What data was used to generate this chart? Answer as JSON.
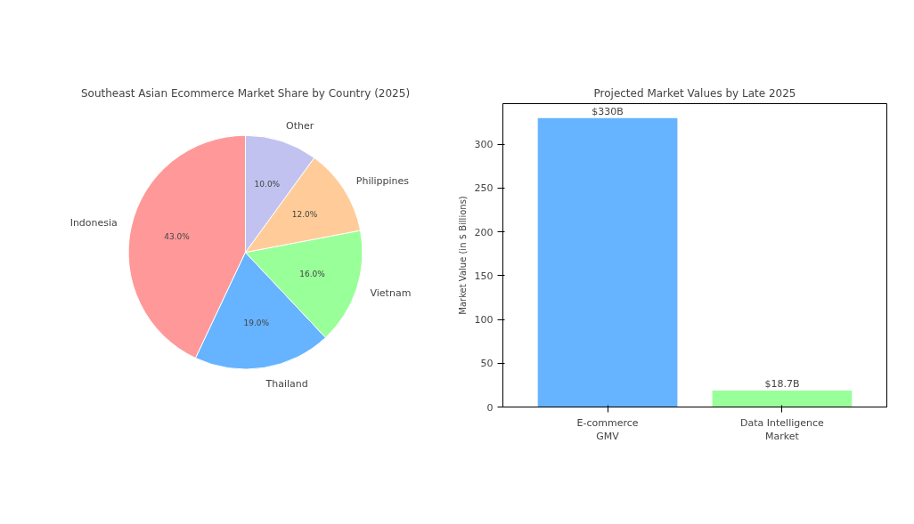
{
  "chart_data": [
    {
      "type": "pie",
      "title": "Southeast Asian Ecommerce Market Share by Country (2025)",
      "categories": [
        "Indonesia",
        "Thailand",
        "Vietnam",
        "Philippines",
        "Other"
      ],
      "values": [
        43,
        19,
        16,
        12,
        10
      ],
      "colors": [
        "#ff9999",
        "#66b3ff",
        "#99ff99",
        "#ffcc99",
        "#c2c2f0"
      ],
      "value_labels": [
        "43.0%",
        "19.0%",
        "16.0%",
        "12.0%",
        "10.0%"
      ]
    },
    {
      "type": "bar",
      "title": "Projected Market Values by Late 2025",
      "ylabel": "Market Value (in $ Billions)",
      "categories": [
        "E-commerce\nGMV",
        "Data Intelligence\nMarket"
      ],
      "values": [
        330,
        18.7
      ],
      "colors": [
        "#66b3ff",
        "#99ff99"
      ],
      "value_labels": [
        "$330B",
        "$18.7B"
      ],
      "ylim": [
        0,
        346.5
      ],
      "yticks": [
        0,
        50,
        100,
        150,
        200,
        250,
        300
      ],
      "grid": false
    }
  ]
}
